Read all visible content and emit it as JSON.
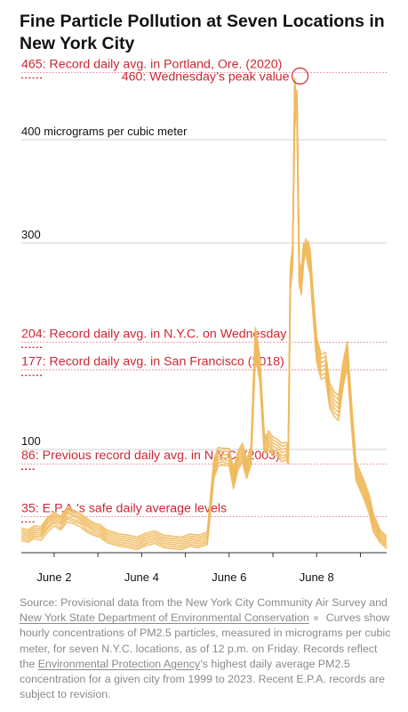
{
  "title": "Fine Particle Pollution at Seven Locations in New York City",
  "colors": {
    "line": "#f0b95c",
    "reference": "#cd2735",
    "grid": "#cfcfcf",
    "axis": "#333333",
    "text": "#121212"
  },
  "chart_data": {
    "type": "line",
    "ylabel": "micrograms per cubic meter",
    "ylim": [
      0,
      480
    ],
    "xlim": [
      1.25,
      9.6
    ],
    "y_ticks": [
      {
        "value": 100,
        "label": "100"
      },
      {
        "value": 300,
        "label": "300"
      },
      {
        "value": 400,
        "label": "400 micrograms per cubic meter"
      }
    ],
    "x_ticks": [
      {
        "value": 2,
        "label": "June 2"
      },
      {
        "value": 3,
        "label": ""
      },
      {
        "value": 4,
        "label": "June 4"
      },
      {
        "value": 5,
        "label": ""
      },
      {
        "value": 6,
        "label": "June 6"
      },
      {
        "value": 7,
        "label": ""
      },
      {
        "value": 8,
        "label": "June 8"
      },
      {
        "value": 9,
        "label": ""
      }
    ],
    "reference_lines": [
      {
        "value": 465,
        "value_label": "465",
        "label": ": Record daily avg. in Portland, Ore. (2020)"
      },
      {
        "value": 204,
        "value_label": "204",
        "label": ": Record daily avg. in N.Y.C. on Wednesday"
      },
      {
        "value": 177,
        "value_label": "177",
        "label": ": Record daily avg. in San Francisco (2018)"
      },
      {
        "value": 86,
        "value_label": "86",
        "label": ": Previous record daily avg. in N.Y.C. (2003)"
      },
      {
        "value": 35,
        "value_label": "35",
        "label": ": E.P.A.'s safe daily average levels"
      }
    ],
    "peak_annotation": {
      "x": 7.62,
      "y": 460,
      "value_label": "460",
      "label": ": Wednesday’s peak value"
    },
    "base_x": [
      1.25,
      1.4,
      1.55,
      1.7,
      1.85,
      2.0,
      2.15,
      2.3,
      2.45,
      2.6,
      2.75,
      2.9,
      3.05,
      3.2,
      3.35,
      3.5,
      3.7,
      3.9,
      4.1,
      4.3,
      4.5,
      4.7,
      4.9,
      5.1,
      5.3,
      5.5,
      5.65,
      5.75,
      5.85,
      6.0,
      6.1,
      6.2,
      6.3,
      6.4,
      6.5,
      6.6,
      6.7,
      6.8,
      6.85,
      6.9,
      6.95,
      7.0,
      7.1,
      7.2,
      7.3,
      7.35,
      7.4,
      7.45,
      7.5,
      7.55,
      7.6,
      7.65,
      7.7,
      7.75,
      7.8,
      7.85,
      7.9,
      8.0,
      8.1,
      8.2,
      8.3,
      8.4,
      8.5,
      8.6,
      8.7,
      8.8,
      8.9,
      9.0,
      9.1,
      9.2,
      9.3,
      9.45,
      9.6
    ],
    "series": [
      {
        "values": [
          12,
          10,
          14,
          12,
          20,
          26,
          22,
          30,
          28,
          25,
          20,
          17,
          15,
          10,
          8,
          6,
          5,
          3,
          7,
          9,
          5,
          4,
          3,
          6,
          5,
          8,
          72,
          84,
          85,
          84,
          62,
          80,
          88,
          72,
          85,
          190,
          166,
          98,
          96,
          100,
          98,
          94,
          94,
          88,
          90,
          86,
          255,
          276,
          460,
          420,
          260,
          250,
          280,
          292,
          278,
          270,
          240,
          185,
          168,
          170,
          140,
          132,
          128,
          160,
          180,
          120,
          70,
          60,
          50,
          38,
          20,
          10,
          4
        ]
      },
      {
        "values": [
          14,
          12,
          16,
          15,
          23,
          29,
          24,
          33,
          30,
          28,
          22,
          19,
          17,
          12,
          10,
          8,
          7,
          5,
          9,
          11,
          7,
          6,
          5,
          8,
          7,
          10,
          75,
          87,
          88,
          86,
          66,
          83,
          91,
          75,
          88,
          195,
          170,
          101,
          98,
          103,
          101,
          97,
          96,
          91,
          93,
          88,
          258,
          280,
          455,
          425,
          262,
          254,
          285,
          296,
          282,
          274,
          244,
          189,
          172,
          174,
          144,
          136,
          132,
          164,
          184,
          124,
          73,
          63,
          53,
          41,
          23,
          12,
          6
        ]
      },
      {
        "values": [
          16,
          14,
          18,
          17,
          25,
          31,
          27,
          35,
          32,
          30,
          25,
          21,
          19,
          14,
          12,
          10,
          9,
          7,
          11,
          13,
          9,
          8,
          7,
          10,
          9,
          12,
          78,
          90,
          90,
          89,
          69,
          86,
          94,
          78,
          91,
          200,
          174,
          104,
          100,
          106,
          103,
          100,
          98,
          94,
          95,
          91,
          262,
          283,
          450,
          430,
          266,
          258,
          288,
          300,
          286,
          278,
          248,
          193,
          176,
          178,
          148,
          140,
          136,
          168,
          188,
          128,
          76,
          66,
          56,
          44,
          26,
          14,
          8
        ]
      },
      {
        "values": [
          18,
          16,
          20,
          19,
          28,
          33,
          29,
          38,
          35,
          32,
          27,
          23,
          21,
          16,
          14,
          12,
          11,
          9,
          13,
          15,
          11,
          10,
          9,
          12,
          11,
          14,
          81,
          93,
          92,
          92,
          72,
          89,
          97,
          81,
          94,
          205,
          178,
          107,
          103,
          109,
          106,
          103,
          101,
          97,
          98,
          94,
          266,
          286,
          440,
          435,
          270,
          262,
          291,
          304,
          290,
          282,
          252,
          197,
          180,
          182,
          152,
          144,
          140,
          172,
          192,
          132,
          79,
          69,
          59,
          47,
          28,
          16,
          10
        ]
      },
      {
        "values": [
          20,
          18,
          22,
          21,
          30,
          35,
          31,
          40,
          37,
          34,
          29,
          25,
          23,
          18,
          16,
          14,
          13,
          11,
          15,
          17,
          13,
          12,
          11,
          14,
          13,
          16,
          84,
          96,
          95,
          95,
          75,
          92,
          100,
          84,
          97,
          210,
          182,
          110,
          106,
          112,
          109,
          106,
          104,
          100,
          101,
          97,
          270,
          290,
          430,
          440,
          274,
          266,
          294,
          296,
          294,
          286,
          256,
          201,
          184,
          186,
          156,
          148,
          144,
          176,
          196,
          136,
          82,
          72,
          62,
          50,
          31,
          18,
          12
        ]
      },
      {
        "values": [
          22,
          20,
          24,
          23,
          32,
          37,
          33,
          42,
          39,
          36,
          31,
          27,
          25,
          20,
          18,
          16,
          15,
          13,
          17,
          19,
          15,
          14,
          13,
          16,
          15,
          18,
          87,
          99,
          98,
          98,
          78,
          95,
          103,
          87,
          100,
          214,
          186,
          113,
          109,
          115,
          112,
          109,
          107,
          103,
          104,
          100,
          274,
          293,
          420,
          444,
          278,
          270,
          297,
          292,
          298,
          290,
          260,
          205,
          188,
          190,
          160,
          152,
          148,
          180,
          200,
          140,
          85,
          75,
          65,
          53,
          34,
          20,
          14
        ]
      },
      {
        "values": [
          24,
          22,
          26,
          25,
          34,
          39,
          35,
          44,
          41,
          38,
          33,
          29,
          27,
          22,
          20,
          18,
          17,
          15,
          19,
          21,
          17,
          16,
          15,
          18,
          17,
          20,
          90,
          102,
          101,
          101,
          81,
          98,
          106,
          90,
          103,
          218,
          190,
          116,
          112,
          118,
          115,
          112,
          110,
          106,
          107,
          103,
          278,
          296,
          410,
          448,
          282,
          274,
          300,
          288,
          302,
          294,
          264,
          209,
          192,
          194,
          164,
          156,
          152,
          184,
          204,
          144,
          88,
          78,
          68,
          56,
          37,
          22,
          16
        ]
      }
    ]
  },
  "source": {
    "part1": "Source: Provisional data from the New York City Community Air Survey and ",
    "link1": "New York State Department of Environmental Conservation",
    "sep": "●",
    "part2": " Curves show hourly concentrations of PM2.5 particles, measured in micrograms per cubic meter, for seven N.Y.C. locations, as of 12 p.m. on Friday. Records reflect the ",
    "link2": "Environmental Protection Agency",
    "part3": "’s highest daily average PM2.5 concentration for a given city from 1999 to 2023. Recent E.P.A. records are subject to revision."
  }
}
